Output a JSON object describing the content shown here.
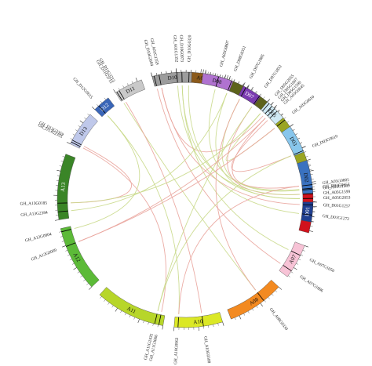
{
  "chromosomes": [
    {
      "id": "A01",
      "color": "#8b5a1b",
      "dark": false
    },
    {
      "id": "A02",
      "color": "#5d631c",
      "dark": false
    },
    {
      "id": "A03",
      "color": "#9aa522",
      "dark": false
    },
    {
      "id": "A05",
      "color": "#d1121c",
      "dark": false
    },
    {
      "id": "A07",
      "color": "#f7c3d6",
      "dark": false
    },
    {
      "id": "A08",
      "color": "#f38a21",
      "dark": false
    },
    {
      "id": "A10",
      "color": "#dbe826",
      "dark": false
    },
    {
      "id": "A11",
      "color": "#b7d62a",
      "dark": false
    },
    {
      "id": "A12",
      "color": "#5cba38",
      "dark": false
    },
    {
      "id": "A13",
      "color": "#3a8527",
      "dark": false
    },
    {
      "id": "D13",
      "color": "#bfc8ea",
      "dark": false
    },
    {
      "id": "D12",
      "color": "#3a66b8",
      "dark": false
    },
    {
      "id": "D11",
      "color": "#c9c9c9",
      "dark": false
    },
    {
      "id": "D10",
      "color": "#9c9c9c",
      "dark": false
    },
    {
      "id": "D08",
      "color": "#b072d0",
      "dark": false
    },
    {
      "id": "D07",
      "color": "#7a3bb1",
      "dark": false
    },
    {
      "id": "D05",
      "color": "#cfe9f4",
      "dark": false
    },
    {
      "id": "D03",
      "color": "#88c6ec",
      "dark": false
    },
    {
      "id": "D02",
      "color": "#3a72c0",
      "dark": false
    },
    {
      "id": "D01",
      "color": "#1f3f90",
      "dark": false
    }
  ],
  "genes": [
    {
      "name": "GH_A01G1359",
      "chr": "A01",
      "f": 0.07
    },
    {
      "name": "GH_A01G1352",
      "chr": "A01",
      "f": 0.25
    },
    {
      "name": "GH_A02G0807",
      "chr": "A02",
      "f": 0.15
    },
    {
      "name": "GH_A03G0645",
      "chr": "A03",
      "f": 0.06
    },
    {
      "name": "GH_A03G0610",
      "chr": "A03",
      "f": 0.22
    },
    {
      "name": "GH_A05G0805",
      "chr": "A05",
      "f": 0.05
    },
    {
      "name": "GH_A05G1589",
      "chr": "A05",
      "f": 0.14
    },
    {
      "name": "GH_A05G1599",
      "chr": "A05",
      "f": 0.23
    },
    {
      "name": "GH_A05G2053",
      "chr": "A05",
      "f": 0.32
    },
    {
      "name": "GH_A07G1050",
      "chr": "A07",
      "f": 0.3
    },
    {
      "name": "GH_A07G1886",
      "chr": "A07",
      "f": 0.8
    },
    {
      "name": "GH_A08G0330",
      "chr": "A08",
      "f": 0.35
    },
    {
      "name": "GH_A10G0308",
      "chr": "A10",
      "f": 0.4
    },
    {
      "name": "GH_A10G0963",
      "chr": "A10",
      "f": 0.92
    },
    {
      "name": "GH_A11G2435",
      "chr": "A11",
      "f": 0.12
    },
    {
      "name": "GH_A11G3666",
      "chr": "A11",
      "f": 0.06
    },
    {
      "name": "GH_A12G0009",
      "chr": "A12",
      "f": 0.72
    },
    {
      "name": "GH_A12G0904",
      "chr": "A12",
      "f": 0.95
    },
    {
      "name": "GH_A13G0185",
      "chr": "A13",
      "f": 0.25
    },
    {
      "name": "GH_A13G2384",
      "chr": "A13",
      "f": 0.12
    },
    {
      "name": "GH_D13G2355",
      "chr": "D13",
      "f": 0.06
    },
    {
      "name": "GH_D13G2359",
      "chr": "D13",
      "f": 0.12
    },
    {
      "name": "GH_D12G0615",
      "chr": "D12",
      "f": 0.3
    },
    {
      "name": "GH_D11G3715",
      "chr": "D11",
      "f": 0.05
    },
    {
      "name": "GH_D11G3713",
      "chr": "D11",
      "f": 0.14
    },
    {
      "name": "GH_D10G2684",
      "chr": "D10",
      "f": 0.05
    },
    {
      "name": "GH_D10G0973",
      "chr": "D10",
      "f": 0.75
    },
    {
      "name": "GH_D10G0320",
      "chr": "D10",
      "f": 0.93
    },
    {
      "name": "GH_D08G0351",
      "chr": "D08",
      "f": 0.95
    },
    {
      "name": "GH_D07G1885",
      "chr": "D07",
      "f": 0.15
    },
    {
      "name": "GH_D07G1852",
      "chr": "D07",
      "f": 0.95
    },
    {
      "name": "GH_D05G2055",
      "chr": "D05",
      "f": 0.1
    },
    {
      "name": "GH_D05G1607",
      "chr": "D05",
      "f": 0.28
    },
    {
      "name": "GH_D05G1590",
      "chr": "D05",
      "f": 0.44
    },
    {
      "name": "GH_D03G0610",
      "chr": "D03",
      "f": 0.95
    },
    {
      "name": "GH_D02G0657",
      "chr": "D02",
      "f": 0.85
    },
    {
      "name": "GH_D01G1257",
      "chr": "D01",
      "f": 0.15
    },
    {
      "name": "GH_D01G1272",
      "chr": "D01",
      "f": 0.65
    }
  ],
  "links": [
    {
      "from": "GH_A01G1359",
      "to": "GH_D01G1257",
      "color": "#e9a39b"
    },
    {
      "from": "GH_A01G1352",
      "to": "GH_D01G1272",
      "color": "#c9d98a"
    },
    {
      "from": "GH_A01G1359",
      "to": "GH_D05G1607",
      "color": "#e9a39b"
    },
    {
      "from": "GH_A02G0807",
      "to": "GH_D02G0657",
      "color": "#c9d98a"
    },
    {
      "from": "GH_A03G0645",
      "to": "GH_D03G0610",
      "color": "#e9a39b"
    },
    {
      "from": "GH_A03G0610",
      "to": "GH_D05G2055",
      "color": "#c9d98a"
    },
    {
      "from": "GH_A05G0805",
      "to": "GH_D05G1590",
      "color": "#e9a39b"
    },
    {
      "from": "GH_A05G1589",
      "to": "GH_D07G1885",
      "color": "#c9d98a"
    },
    {
      "from": "GH_A05G1599",
      "to": "GH_D07G1852",
      "color": "#e9a39b"
    },
    {
      "from": "GH_A05G2053",
      "to": "GH_D08G0351",
      "color": "#c9d98a"
    },
    {
      "from": "GH_A05G2053",
      "to": "GH_D10G0320",
      "color": "#c9d98a"
    },
    {
      "from": "GH_A07G1050",
      "to": "GH_D10G0973",
      "color": "#c9d98a"
    },
    {
      "from": "GH_A07G1886",
      "to": "GH_D10G2684",
      "color": "#e9a39b"
    },
    {
      "from": "GH_A08G0330",
      "to": "GH_D11G3715",
      "color": "#c9d98a"
    },
    {
      "from": "GH_A10G0308",
      "to": "GH_D11G3713",
      "color": "#e9a39b"
    },
    {
      "from": "GH_A10G0963",
      "to": "GH_D12G0615",
      "color": "#c9d98a"
    },
    {
      "from": "GH_A11G3666",
      "to": "GH_D13G2355",
      "color": "#e9a39b"
    },
    {
      "from": "GH_A11G2435",
      "to": "GH_D07G1852",
      "color": "#c9d98a"
    },
    {
      "from": "GH_A12G0009",
      "to": "GH_D05G1590",
      "color": "#e9a39b"
    },
    {
      "from": "GH_A12G0904",
      "to": "GH_D12G0615",
      "color": "#c9d98a"
    },
    {
      "from": "GH_A13G0185",
      "to": "GH_D13G2359",
      "color": "#e9a39b"
    },
    {
      "from": "GH_A13G2384",
      "to": "GH_D08G0351",
      "color": "#c9d98a"
    },
    {
      "from": "GH_A12G0009",
      "to": "GH_A03G0610",
      "color": "#e9a39b"
    },
    {
      "from": "GH_A13G0185",
      "to": "GH_D05G2055",
      "color": "#c9d98a"
    },
    {
      "from": "GH_A08G0330",
      "to": "GH_D07G1885",
      "color": "#e9a39b"
    },
    {
      "from": "GH_A10G0963",
      "to": "GH_A05G0805",
      "color": "#e9a39b"
    },
    {
      "from": "GH_A11G2435",
      "to": "GH_D03G0610",
      "color": "#c9d98a"
    },
    {
      "from": "GH_D10G0973",
      "to": "GH_A05G1599",
      "color": "#c9d98a"
    }
  ]
}
